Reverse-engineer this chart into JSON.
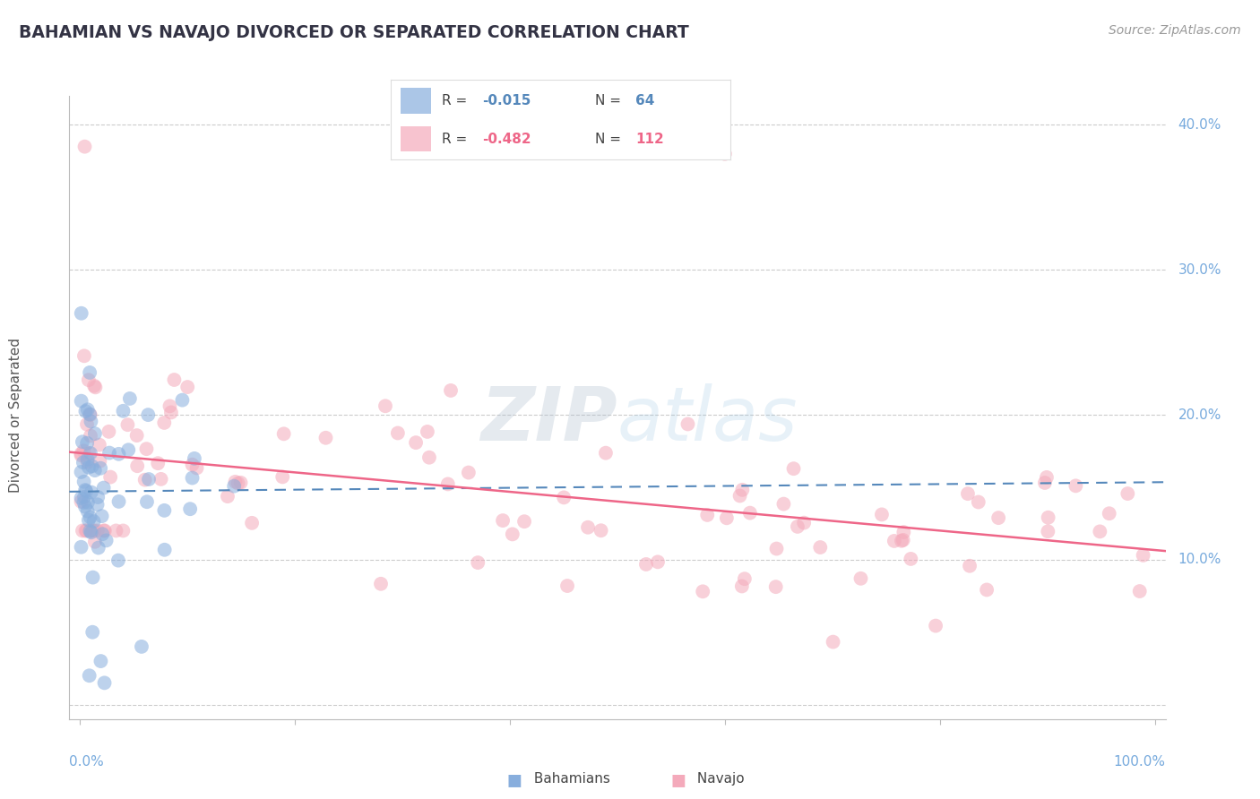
{
  "title": "BAHAMIAN VS NAVAJO DIVORCED OR SEPARATED CORRELATION CHART",
  "source": "Source: ZipAtlas.com",
  "ylabel": "Divorced or Separated",
  "blue_color": "#88AEDD",
  "pink_color": "#F4AABB",
  "blue_line_color": "#5588BB",
  "pink_line_color": "#EE6688",
  "background_color": "#FFFFFF",
  "grid_color": "#CCCCCC",
  "watermark_color": "#BBDDEE",
  "tick_color": "#77AADD",
  "title_color": "#333344",
  "source_color": "#999999",
  "ylabel_color": "#555555",
  "legend_r_blue": "-0.015",
  "legend_n_blue": "64",
  "legend_r_pink": "-0.482",
  "legend_n_pink": "112",
  "legend_label_blue": "Bahamians",
  "legend_label_pink": "Navajo"
}
